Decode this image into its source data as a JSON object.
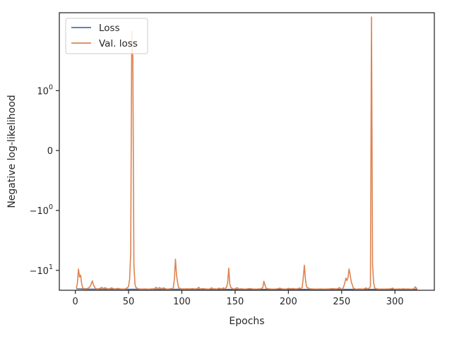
{
  "chart_data": {
    "type": "line",
    "xlabel": "Epochs",
    "ylabel": "Negative log-likelihood",
    "xscale": "linear",
    "yscale": "symlog",
    "xlim": [
      -15,
      337
    ],
    "ylim": [
      -21.5,
      20
    ],
    "xticks": [
      0,
      50,
      100,
      150,
      200,
      250,
      300
    ],
    "yticks": [
      {
        "value": 1,
        "label": "10",
        "exp": "0"
      },
      {
        "value": 0,
        "label": "0",
        "exp": ""
      },
      {
        "value": -1,
        "label": "−10",
        "exp": "0"
      },
      {
        "value": -10,
        "label": "−10",
        "exp": "1"
      }
    ],
    "legend": {
      "placement": "top-left",
      "entries": [
        "Loss",
        "Val. loss"
      ]
    },
    "grid": false,
    "colors": {
      "loss": "#4c72b0",
      "val_loss": "#dd8452"
    },
    "series": [
      {
        "name": "Loss",
        "color": "#4c72b0",
        "points": [
          [
            1,
            -20.3
          ],
          [
            10,
            -20.6
          ],
          [
            50,
            -20.7
          ],
          [
            100,
            -20.7
          ],
          [
            150,
            -20.75
          ],
          [
            200,
            -20.75
          ],
          [
            250,
            -20.75
          ],
          [
            300,
            -20.75
          ],
          [
            321,
            -20.75
          ]
        ]
      },
      {
        "name": "Val. loss",
        "color": "#dd8452",
        "points": [
          [
            1,
            -20.2
          ],
          [
            2,
            -16
          ],
          [
            3,
            -9.5
          ],
          [
            4,
            -13
          ],
          [
            5,
            -12
          ],
          [
            6,
            -17
          ],
          [
            7,
            -19.8
          ],
          [
            9,
            -20.3
          ],
          [
            12,
            -20
          ],
          [
            14,
            -18.5
          ],
          [
            16,
            -15
          ],
          [
            17,
            -17.5
          ],
          [
            19,
            -20.2
          ],
          [
            21,
            -20.4
          ],
          [
            23,
            -20
          ],
          [
            25,
            -19.3
          ],
          [
            26,
            -20.2
          ],
          [
            28,
            -19.5
          ],
          [
            30,
            -20.3
          ],
          [
            32,
            -20.3
          ],
          [
            34,
            -19.6
          ],
          [
            36,
            -20.3
          ],
          [
            38,
            -20.4
          ],
          [
            40,
            -20
          ],
          [
            42,
            -20.4
          ],
          [
            45,
            -20.5
          ],
          [
            47,
            -20.4
          ],
          [
            49,
            -19.4
          ],
          [
            50,
            -18.5
          ],
          [
            51,
            -14
          ],
          [
            52,
            -5
          ],
          [
            53,
            9.8
          ],
          [
            54,
            3.5
          ],
          [
            55,
            -8
          ],
          [
            56,
            -17
          ],
          [
            57,
            -19.5
          ],
          [
            59,
            -20.3
          ],
          [
            62,
            -20.5
          ],
          [
            65,
            -20.4
          ],
          [
            68,
            -20.5
          ],
          [
            70,
            -20.5
          ],
          [
            72,
            -20.3
          ],
          [
            74,
            -20.4
          ],
          [
            76,
            -19.2
          ],
          [
            77,
            -20.4
          ],
          [
            79,
            -19.4
          ],
          [
            81,
            -20.3
          ],
          [
            83,
            -19.6
          ],
          [
            85,
            -20.4
          ],
          [
            87,
            -20.5
          ],
          [
            89,
            -20.3
          ],
          [
            91,
            -20.1
          ],
          [
            92,
            -19.5
          ],
          [
            93,
            -14
          ],
          [
            94,
            -6.5
          ],
          [
            95,
            -12
          ],
          [
            96,
            -16
          ],
          [
            97,
            -19.5
          ],
          [
            99,
            -20.3
          ],
          [
            102,
            -20.4
          ],
          [
            105,
            -20.3
          ],
          [
            108,
            -20.4
          ],
          [
            110,
            -20.2
          ],
          [
            112,
            -20.4
          ],
          [
            114,
            -20.3
          ],
          [
            116,
            -19.2
          ],
          [
            117,
            -20.4
          ],
          [
            120,
            -20.2
          ],
          [
            122,
            -20.4
          ],
          [
            124,
            -20.5
          ],
          [
            126,
            -20.5
          ],
          [
            128,
            -19.5
          ],
          [
            129,
            -20.4
          ],
          [
            131,
            -20.3
          ],
          [
            133,
            -20.5
          ],
          [
            135,
            -19.8
          ],
          [
            137,
            -20.4
          ],
          [
            139,
            -19.6
          ],
          [
            140,
            -20.3
          ],
          [
            142,
            -19.1
          ],
          [
            143,
            -16
          ],
          [
            144,
            -9.2
          ],
          [
            145,
            -17
          ],
          [
            146,
            -19.3
          ],
          [
            148,
            -20.4
          ],
          [
            150,
            -20.3
          ],
          [
            152,
            -19.4
          ],
          [
            153,
            -20.4
          ],
          [
            156,
            -20.3
          ],
          [
            158,
            -20.5
          ],
          [
            160,
            -20.5
          ],
          [
            162,
            -20.3
          ],
          [
            164,
            -20.1
          ],
          [
            166,
            -20.4
          ],
          [
            168,
            -20.5
          ],
          [
            170,
            -20.5
          ],
          [
            172,
            -20.4
          ],
          [
            174,
            -20.3
          ],
          [
            176,
            -19.5
          ],
          [
            177,
            -15.2
          ],
          [
            178,
            -17.5
          ],
          [
            179,
            -19.8
          ],
          [
            181,
            -20.3
          ],
          [
            184,
            -20.5
          ],
          [
            187,
            -20.5
          ],
          [
            190,
            -20.3
          ],
          [
            192,
            -19.8
          ],
          [
            194,
            -20.4
          ],
          [
            196,
            -20.5
          ],
          [
            198,
            -20.5
          ],
          [
            200,
            -20
          ],
          [
            202,
            -20.3
          ],
          [
            204,
            -20.1
          ],
          [
            206,
            -20.3
          ],
          [
            208,
            -20.4
          ],
          [
            210,
            -19.8
          ],
          [
            212,
            -20.1
          ],
          [
            213,
            -19.2
          ],
          [
            214,
            -13
          ],
          [
            215,
            -8.2
          ],
          [
            216,
            -14
          ],
          [
            217,
            -18.8
          ],
          [
            218,
            -19.5
          ],
          [
            220,
            -20.3
          ],
          [
            222,
            -20.4
          ],
          [
            225,
            -20.5
          ],
          [
            228,
            -20.5
          ],
          [
            230,
            -20.4
          ],
          [
            232,
            -20.5
          ],
          [
            235,
            -20.5
          ],
          [
            238,
            -20.4
          ],
          [
            240,
            -20.3
          ],
          [
            242,
            -20.2
          ],
          [
            244,
            -20.4
          ],
          [
            246,
            -20.3
          ],
          [
            248,
            -19.4
          ],
          [
            249,
            -20.3
          ],
          [
            251,
            -20.4
          ],
          [
            252,
            -18.5
          ],
          [
            253,
            -16
          ],
          [
            254,
            -13.5
          ],
          [
            255,
            -14.8
          ],
          [
            256,
            -13
          ],
          [
            257,
            -9.5
          ],
          [
            258,
            -12
          ],
          [
            259,
            -15.5
          ],
          [
            260,
            -17.5
          ],
          [
            261,
            -19.8
          ],
          [
            263,
            -20.5
          ],
          [
            265,
            -20.5
          ],
          [
            267,
            -20.4
          ],
          [
            269,
            -20.5
          ],
          [
            271,
            -20.4
          ],
          [
            273,
            -19.6
          ],
          [
            274,
            -20.4
          ],
          [
            276,
            -19.8
          ],
          [
            277,
            -18.5
          ],
          [
            278,
            17
          ],
          [
            279,
            -8
          ],
          [
            280,
            -16
          ],
          [
            281,
            -19.7
          ],
          [
            283,
            -20.4
          ],
          [
            285,
            -20.5
          ],
          [
            288,
            -20.5
          ],
          [
            291,
            -20.5
          ],
          [
            294,
            -20.4
          ],
          [
            296,
            -20.3
          ],
          [
            298,
            -19.8
          ],
          [
            299,
            -20.5
          ],
          [
            302,
            -20.5
          ],
          [
            304,
            -20.4
          ],
          [
            306,
            -20.5
          ],
          [
            308,
            -20.3
          ],
          [
            310,
            -20.5
          ],
          [
            312,
            -20.4
          ],
          [
            314,
            -20.5
          ],
          [
            316,
            -20.5
          ],
          [
            318,
            -20.3
          ],
          [
            319,
            -18.8
          ],
          [
            320,
            -19.8
          ],
          [
            321,
            -19.9
          ]
        ]
      }
    ]
  }
}
